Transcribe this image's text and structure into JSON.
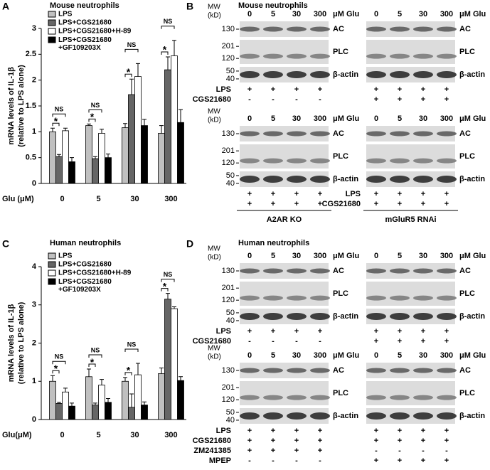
{
  "chart_data": [
    {
      "type": "bar",
      "letter": "A",
      "title": "Mouse neutrophils",
      "ylabel": [
        "mRNA levels of IL-1β",
        "(relative to LPS alone)"
      ],
      "xlabel": "Glu (μM)",
      "categories": [
        "0",
        "5",
        "30",
        "300"
      ],
      "series": [
        {
          "name": "LPS",
          "color": "#c0c0c0",
          "values": [
            1.0,
            1.12,
            1.08,
            0.97
          ],
          "errors": [
            0.07,
            0.03,
            0.08,
            0.15
          ]
        },
        {
          "name": "LPS+CGS21680",
          "color": "#666666",
          "values": [
            0.52,
            0.48,
            1.72,
            2.2
          ],
          "errors": [
            0.04,
            0.04,
            0.3,
            0.25
          ]
        },
        {
          "name": "LPS+CGS21680+H-89",
          "color": "#ffffff",
          "values": [
            1.02,
            0.97,
            2.07,
            2.47
          ],
          "errors": [
            0.05,
            0.08,
            0.25,
            0.3
          ]
        },
        {
          "name": "LPS+CGS21680+GF109203X",
          "color": "#000000",
          "values": [
            0.42,
            0.5,
            1.12,
            1.18
          ],
          "errors": [
            0.08,
            0.07,
            0.12,
            0.25
          ]
        }
      ],
      "annotations": [
        [
          "*",
          "NS"
        ],
        [
          "*",
          "NS"
        ],
        [
          "*",
          "NS"
        ],
        [
          "*",
          "NS"
        ]
      ],
      "ylim": [
        0,
        3
      ],
      "yticks": [
        0,
        0.5,
        1,
        1.5,
        2,
        2.5,
        3
      ]
    },
    {
      "type": "bar",
      "letter": "C",
      "title": "Human neutrophils",
      "ylabel": [
        "mRNA levels of IL-1β",
        "(relative to LPS alone)"
      ],
      "xlabel": "Glu(μM)",
      "categories": [
        "0",
        "5",
        "30",
        "300"
      ],
      "series": [
        {
          "name": "LPS",
          "color": "#c0c0c0",
          "values": [
            1.0,
            1.12,
            1.0,
            1.2
          ],
          "errors": [
            0.15,
            0.2,
            0.1,
            0.15
          ]
        },
        {
          "name": "LPS+CGS21680",
          "color": "#666666",
          "values": [
            0.42,
            0.38,
            0.32,
            3.15
          ],
          "errors": [
            0.03,
            0.05,
            0.35,
            0.15
          ]
        },
        {
          "name": "LPS+CGS21680+H-89",
          "color": "#ffffff",
          "values": [
            0.72,
            0.9,
            1.17,
            2.9
          ],
          "errors": [
            0.1,
            0.15,
            0.3,
            0.05
          ]
        },
        {
          "name": "LPS+CGS21680+GF109203X",
          "color": "#000000",
          "values": [
            0.35,
            0.45,
            0.38,
            1.02
          ],
          "errors": [
            0.08,
            0.1,
            0.08,
            0.1
          ]
        }
      ],
      "annotations": [
        [
          "*",
          "NS"
        ],
        [
          "*",
          "NS"
        ],
        [
          "*",
          "NS"
        ],
        [
          "*",
          "NS"
        ]
      ],
      "ylim": [
        0,
        4
      ],
      "yticks": [
        0,
        1,
        2,
        3,
        4
      ]
    }
  ],
  "blot_panels": [
    {
      "letter": "B",
      "title": "Mouse neutrophils",
      "blots": [
        {
          "mw_header": [
            "MW",
            "(kD)"
          ],
          "lanes": [
            "0",
            "5",
            "30",
            "300"
          ],
          "unit": "μM Glu",
          "strips": [
            {
              "mw": [
                "130"
              ],
              "label": "AC"
            },
            {
              "mw": [
                "201",
                "120"
              ],
              "label": "PLC"
            },
            {
              "mw": [
                "50",
                "40"
              ],
              "label": "β-actin"
            }
          ],
          "treatments": [
            {
              "name": "LPS",
              "signs": [
                "+",
                "+",
                "+",
                "+"
              ]
            },
            {
              "name": "CGS21680",
              "signs": [
                "-",
                "-",
                "-",
                "-"
              ]
            }
          ]
        },
        {
          "lanes": [
            "0",
            "5",
            "30",
            "300"
          ],
          "unit": "μM Glu",
          "strips": [
            {
              "label": "AC"
            },
            {
              "label": "PLC"
            },
            {
              "label": "β-actin"
            }
          ],
          "treatments": [
            {
              "signs": [
                "+",
                "+",
                "+",
                "+"
              ]
            },
            {
              "signs": [
                "+",
                "+",
                "+",
                "+"
              ]
            }
          ]
        },
        {
          "mw_header": [
            "MW",
            "(kD)"
          ],
          "lanes": [
            "0",
            "5",
            "30",
            "300"
          ],
          "unit": "μM Glu",
          "strips": [
            {
              "mw": [
                "130"
              ],
              "label": "AC"
            },
            {
              "mw": [
                "201",
                "120"
              ],
              "label": "PLC"
            },
            {
              "mw": [
                "50",
                "40"
              ],
              "label": "β-actin"
            }
          ],
          "treatments": [
            {
              "signs": [
                "+",
                "+",
                "+",
                "+"
              ]
            },
            {
              "signs": [
                "+",
                "+",
                "+",
                "+"
              ]
            }
          ],
          "footer": "A2AR KO"
        },
        {
          "lanes": [
            "0",
            "5",
            "30",
            "300"
          ],
          "unit": "μM Glu",
          "strips": [
            {
              "label": "AC"
            },
            {
              "label": "PLC"
            },
            {
              "label": "β-actin"
            }
          ],
          "treatments": [
            {
              "name": "LPS",
              "signs": [
                "+",
                "+",
                "+",
                "+"
              ]
            },
            {
              "name": "CGS21680",
              "signs": [
                "+",
                "+",
                "+",
                "+"
              ]
            }
          ],
          "footer": "mGluR5 RNAi"
        }
      ]
    },
    {
      "letter": "D",
      "title": "Human neutrophils",
      "blots": [
        {
          "mw_header": [
            "MW",
            "(kD)"
          ],
          "lanes": [
            "0",
            "5",
            "30",
            "300"
          ],
          "unit": "μM Glu",
          "strips": [
            {
              "mw": [
                "130"
              ],
              "label": "AC"
            },
            {
              "mw": [
                "201",
                "120"
              ],
              "label": "PLC"
            },
            {
              "mw": [
                "50",
                "40"
              ],
              "label": "β-actin"
            }
          ],
          "treatments": [
            {
              "name": "LPS",
              "signs": [
                "+",
                "+",
                "+",
                "+"
              ]
            },
            {
              "name": "CGS21680",
              "signs": [
                "-",
                "-",
                "-",
                "-"
              ]
            }
          ]
        },
        {
          "lanes": [
            "0",
            "5",
            "30",
            "300"
          ],
          "unit": "μM Glu",
          "strips": [
            {
              "label": "AC"
            },
            {
              "label": "PLC"
            },
            {
              "label": "β-actin"
            }
          ],
          "treatments": [
            {
              "signs": [
                "+",
                "+",
                "+",
                "+"
              ]
            },
            {
              "signs": [
                "+",
                "+",
                "+",
                "+"
              ]
            }
          ]
        },
        {
          "mw_header": [
            "MW",
            "(kD)"
          ],
          "lanes": [
            "0",
            "5",
            "30",
            "300"
          ],
          "unit": "μM Glu",
          "strips": [
            {
              "mw": [
                "130"
              ],
              "label": "AC"
            },
            {
              "mw": [
                "201",
                "120"
              ],
              "label": "PLC"
            },
            {
              "mw": [
                "50",
                "40"
              ],
              "label": "β-actin"
            }
          ],
          "treatments": [
            {
              "name": "LPS",
              "signs": [
                "+",
                "+",
                "+",
                "+"
              ]
            },
            {
              "name": "CGS21680",
              "signs": [
                "+",
                "+",
                "+",
                "+"
              ]
            },
            {
              "name": "ZM241385",
              "signs": [
                "+",
                "+",
                "+",
                "+"
              ]
            },
            {
              "name": "MPEP",
              "signs": [
                "-",
                "-",
                "-",
                "-"
              ]
            }
          ]
        },
        {
          "lanes": [
            "0",
            "5",
            "30",
            "300"
          ],
          "unit": "μM Glu",
          "strips": [
            {
              "label": "AC"
            },
            {
              "label": "PLC"
            },
            {
              "label": "β-actin"
            }
          ],
          "treatments": [
            {
              "signs": [
                "+",
                "+",
                "+",
                "+"
              ]
            },
            {
              "signs": [
                "+",
                "+",
                "+",
                "+"
              ]
            },
            {
              "signs": [
                "-",
                "-",
                "-",
                "-"
              ]
            },
            {
              "signs": [
                "+",
                "+",
                "+",
                "+"
              ]
            }
          ]
        }
      ]
    }
  ]
}
